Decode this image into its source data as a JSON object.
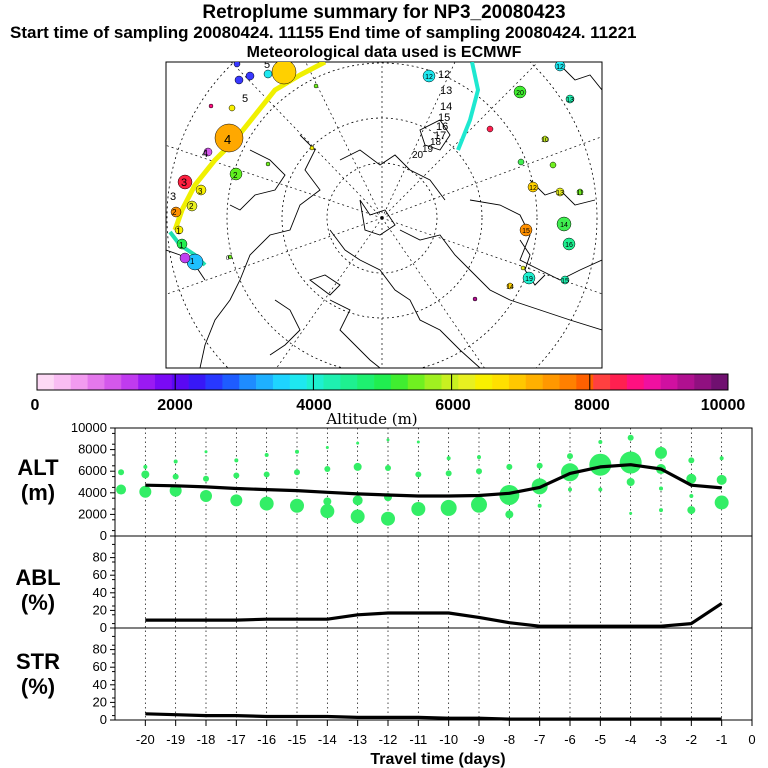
{
  "header": {
    "title": "Retroplume summary for NP3_20080423",
    "sampling_line": "Start time of sampling 20080424. 11155     End time of sampling 20080424. 11221",
    "met_line": "Meteorological data used is ECMWF"
  },
  "map": {
    "projection": "north polar stereographic",
    "plume_labels": [
      "5",
      "5",
      "4",
      "4",
      "3",
      "3",
      "3",
      "2",
      "2",
      "2",
      "1",
      "1",
      "1",
      "0"
    ],
    "east_labels": [
      "12",
      "13",
      "14",
      "15",
      "16",
      "17",
      "18",
      "19",
      "20"
    ],
    "east_circle_labels": [
      "12",
      "20",
      "13",
      "12",
      "12",
      "13",
      "15",
      "14",
      "16",
      "19",
      "15",
      "14",
      "10",
      "11"
    ]
  },
  "colorbar": {
    "label": "Altitude (m)",
    "ticks": [
      "0",
      "2000",
      "4000",
      "6000",
      "8000",
      "10000"
    ],
    "colors": [
      "#fdd9f5",
      "#f9bdf3",
      "#f29bef",
      "#e478ec",
      "#d458eb",
      "#c03bef",
      "#9a1af3",
      "#7a0af5",
      "#5a08f3",
      "#3818f7",
      "#2838ff",
      "#1e5cff",
      "#1e8cff",
      "#1eb0ff",
      "#1ed4ff",
      "#1ee8f0",
      "#1ef0d0",
      "#1ef0b0",
      "#1ef090",
      "#1ef070",
      "#20ee50",
      "#40ee30",
      "#70f020",
      "#a0f020",
      "#c8f020",
      "#e8f020",
      "#f8f000",
      "#ffe000",
      "#ffc800",
      "#ffb000",
      "#ff9800",
      "#ff8000",
      "#ff6000",
      "#ff4040",
      "#ff2050",
      "#ff1080",
      "#f010a0",
      "#d010a0",
      "#b01090",
      "#901080",
      "#701070"
    ]
  },
  "chart_data": [
    {
      "type": "line",
      "panel": "ALT",
      "ylabel_line1": "ALT",
      "ylabel_line2": "(m)",
      "x": [
        -20,
        -19,
        -18,
        -17,
        -16,
        -15,
        -14,
        -13,
        -12,
        -11,
        -10,
        -9,
        -8,
        -7,
        -6,
        -5,
        -4,
        -3,
        -2,
        -1
      ],
      "values": [
        4700,
        4650,
        4550,
        4400,
        4300,
        4200,
        4050,
        3900,
        3800,
        3700,
        3700,
        3750,
        3950,
        4500,
        5800,
        6400,
        6600,
        6200,
        4700,
        4450
      ],
      "ylim": [
        0,
        10000
      ],
      "yticks": [
        "0",
        "2000",
        "4000",
        "6000",
        "8000",
        "10000"
      ],
      "scatter_note": "green circles show altitude distribution of particle clusters"
    },
    {
      "type": "line",
      "panel": "ABL",
      "ylabel_line1": "ABL",
      "ylabel_line2": "(%)",
      "x": [
        -20,
        -19,
        -18,
        -17,
        -16,
        -15,
        -14,
        -13,
        -12,
        -11,
        -10,
        -9,
        -8,
        -7,
        -6,
        -5,
        -4,
        -3,
        -2,
        -1
      ],
      "values": [
        9,
        9,
        9,
        9,
        10,
        10,
        10,
        15,
        17,
        17,
        17,
        12,
        6,
        2,
        2,
        2,
        2,
        2,
        5,
        28
      ],
      "ylim": [
        0,
        100
      ],
      "yticks": [
        "0",
        "20",
        "40",
        "60",
        "80"
      ]
    },
    {
      "type": "line",
      "panel": "STR",
      "ylabel_line1": "STR",
      "ylabel_line2": "(%)",
      "x": [
        -20,
        -19,
        -18,
        -17,
        -16,
        -15,
        -14,
        -13,
        -12,
        -11,
        -10,
        -9,
        -8,
        -7,
        -6,
        -5,
        -4,
        -3,
        -2,
        -1
      ],
      "values": [
        7,
        6,
        5,
        5,
        4,
        4,
        4,
        3,
        3,
        3,
        2,
        2,
        1,
        1,
        1,
        1,
        1,
        1,
        1,
        1
      ],
      "ylim": [
        0,
        100
      ],
      "yticks": [
        "0",
        "20",
        "40",
        "60",
        "80"
      ]
    }
  ],
  "xaxis": {
    "ticks": [
      "-20",
      "-19",
      "-18",
      "-17",
      "-16",
      "-15",
      "-14",
      "-13",
      "-12",
      "-11",
      "-10",
      "-9",
      "-8",
      "-7",
      "-6",
      "-5",
      "-4",
      "-3",
      "-2",
      "-1",
      "0"
    ],
    "label": "Travel time (days)",
    "xlim": [
      -21,
      0
    ]
  },
  "alt_scatter": [
    {
      "x": -20.8,
      "y": 4300,
      "s": 5
    },
    {
      "x": -20.8,
      "y": 5900,
      "s": 3
    },
    {
      "x": -20,
      "y": 4100,
      "s": 6
    },
    {
      "x": -20,
      "y": 5700,
      "s": 4
    },
    {
      "x": -20,
      "y": 6400,
      "s": 2
    },
    {
      "x": -19,
      "y": 4200,
      "s": 6
    },
    {
      "x": -19,
      "y": 5500,
      "s": 3
    },
    {
      "x": -19,
      "y": 6900,
      "s": 2
    },
    {
      "x": -18,
      "y": 3700,
      "s": 6
    },
    {
      "x": -18,
      "y": 5300,
      "s": 3
    },
    {
      "x": -18,
      "y": 7800,
      "s": 1.5
    },
    {
      "x": -17,
      "y": 3300,
      "s": 6
    },
    {
      "x": -17,
      "y": 5600,
      "s": 3
    },
    {
      "x": -17,
      "y": 7000,
      "s": 2
    },
    {
      "x": -16,
      "y": 3000,
      "s": 7
    },
    {
      "x": -16,
      "y": 5700,
      "s": 3
    },
    {
      "x": -16,
      "y": 7500,
      "s": 2
    },
    {
      "x": -15,
      "y": 2800,
      "s": 7
    },
    {
      "x": -15,
      "y": 5900,
      "s": 3
    },
    {
      "x": -15,
      "y": 7800,
      "s": 2
    },
    {
      "x": -14,
      "y": 2300,
      "s": 7
    },
    {
      "x": -14,
      "y": 3200,
      "s": 4
    },
    {
      "x": -14,
      "y": 6200,
      "s": 3
    },
    {
      "x": -14,
      "y": 8200,
      "s": 1.5
    },
    {
      "x": -13,
      "y": 1800,
      "s": 7
    },
    {
      "x": -13,
      "y": 3300,
      "s": 5
    },
    {
      "x": -13,
      "y": 6400,
      "s": 4
    },
    {
      "x": -13,
      "y": 8600,
      "s": 1.5
    },
    {
      "x": -12,
      "y": 1600,
      "s": 7
    },
    {
      "x": -12,
      "y": 3600,
      "s": 4
    },
    {
      "x": -12,
      "y": 6300,
      "s": 3
    },
    {
      "x": -12,
      "y": 8900,
      "s": 1.5
    },
    {
      "x": -11,
      "y": 2500,
      "s": 7
    },
    {
      "x": -11,
      "y": 5700,
      "s": 3
    },
    {
      "x": -11,
      "y": 8700,
      "s": 1.5
    },
    {
      "x": -10,
      "y": 2600,
      "s": 8
    },
    {
      "x": -10,
      "y": 5800,
      "s": 3
    },
    {
      "x": -10,
      "y": 7200,
      "s": 2
    },
    {
      "x": -9,
      "y": 2900,
      "s": 8
    },
    {
      "x": -9,
      "y": 6000,
      "s": 3
    },
    {
      "x": -9,
      "y": 7300,
      "s": 2
    },
    {
      "x": -8,
      "y": 3800,
      "s": 10
    },
    {
      "x": -8,
      "y": 2000,
      "s": 4
    },
    {
      "x": -8,
      "y": 6400,
      "s": 3
    },
    {
      "x": -7,
      "y": 4600,
      "s": 8
    },
    {
      "x": -7,
      "y": 6500,
      "s": 3
    },
    {
      "x": -7,
      "y": 2800,
      "s": 2
    },
    {
      "x": -6,
      "y": 5900,
      "s": 9
    },
    {
      "x": -6,
      "y": 7400,
      "s": 3
    },
    {
      "x": -6,
      "y": 4300,
      "s": 2
    },
    {
      "x": -5,
      "y": 6600,
      "s": 11
    },
    {
      "x": -5,
      "y": 4300,
      "s": 2
    },
    {
      "x": -5,
      "y": 8700,
      "s": 2
    },
    {
      "x": -4,
      "y": 6800,
      "s": 11
    },
    {
      "x": -4,
      "y": 5000,
      "s": 4
    },
    {
      "x": -4,
      "y": 9100,
      "s": 3
    },
    {
      "x": -4,
      "y": 2100,
      "s": 1.5
    },
    {
      "x": -3,
      "y": 7700,
      "s": 6
    },
    {
      "x": -3,
      "y": 6200,
      "s": 5
    },
    {
      "x": -3,
      "y": 4400,
      "s": 2
    },
    {
      "x": -3,
      "y": 2400,
      "s": 2
    },
    {
      "x": -2,
      "y": 5300,
      "s": 5
    },
    {
      "x": -2,
      "y": 7000,
      "s": 3
    },
    {
      "x": -2,
      "y": 2400,
      "s": 4
    },
    {
      "x": -2,
      "y": 3700,
      "s": 2
    },
    {
      "x": -1,
      "y": 3100,
      "s": 7
    },
    {
      "x": -1,
      "y": 5200,
      "s": 5
    },
    {
      "x": -1,
      "y": 7200,
      "s": 2
    }
  ]
}
